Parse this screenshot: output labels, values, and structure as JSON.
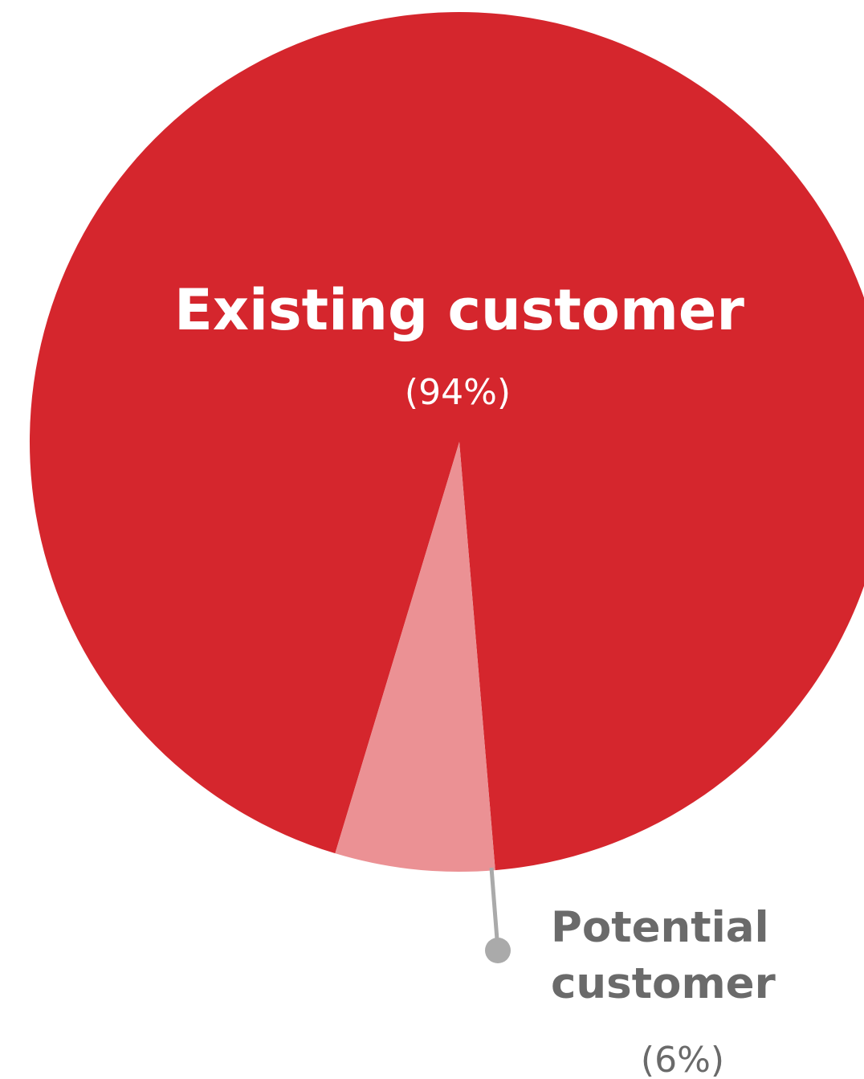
{
  "chart_data": {
    "type": "pie",
    "slices": [
      {
        "label_lines": [
          "Existing customer"
        ],
        "value": 94,
        "pct_label": "(94%)",
        "color": "#d5262d",
        "label_color": "#ffffff"
      },
      {
        "label_lines": [
          "Potential",
          "customer"
        ],
        "value": 6,
        "pct_label": "(6%)",
        "color": "#eb9194",
        "label_color": "#6a6a6a"
      }
    ],
    "leader_color": "#aaaaaa"
  }
}
